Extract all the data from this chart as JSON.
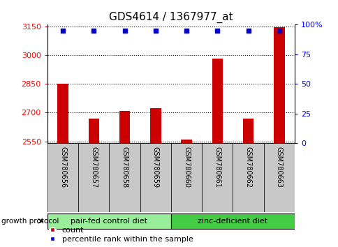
{
  "title": "GDS4614 / 1367977_at",
  "samples": [
    "GSM780656",
    "GSM780657",
    "GSM780658",
    "GSM780659",
    "GSM780660",
    "GSM780661",
    "GSM780662",
    "GSM780663"
  ],
  "counts": [
    2850,
    2668,
    2708,
    2722,
    2558,
    2983,
    2668,
    3148
  ],
  "percentiles": [
    96,
    96,
    96,
    96,
    96,
    96,
    96,
    99
  ],
  "ylim_left": [
    2540,
    3160
  ],
  "ylim_right": [
    0,
    100
  ],
  "yticks_left": [
    2550,
    2700,
    2850,
    3000,
    3150
  ],
  "yticks_right": [
    0,
    25,
    50,
    75,
    100
  ],
  "ytick_labels_right": [
    "0",
    "25",
    "50",
    "75",
    "100%"
  ],
  "bar_color": "#cc0000",
  "dot_color": "#0000cc",
  "sample_box_color": "#c8c8c8",
  "group1_label": "pair-fed control diet",
  "group2_label": "zinc-deficient diet",
  "group1_color": "#99ee99",
  "group2_color": "#44cc44",
  "group1_indices": [
    0,
    1,
    2,
    3
  ],
  "group2_indices": [
    4,
    5,
    6,
    7
  ],
  "legend_label_count": "count",
  "legend_label_percentile": "percentile rank within the sample",
  "growth_protocol_label": "growth protocol",
  "bar_width": 0.35,
  "title_fontsize": 11,
  "tick_fontsize": 8,
  "sample_fontsize": 7,
  "group_fontsize": 8,
  "legend_fontsize": 8
}
